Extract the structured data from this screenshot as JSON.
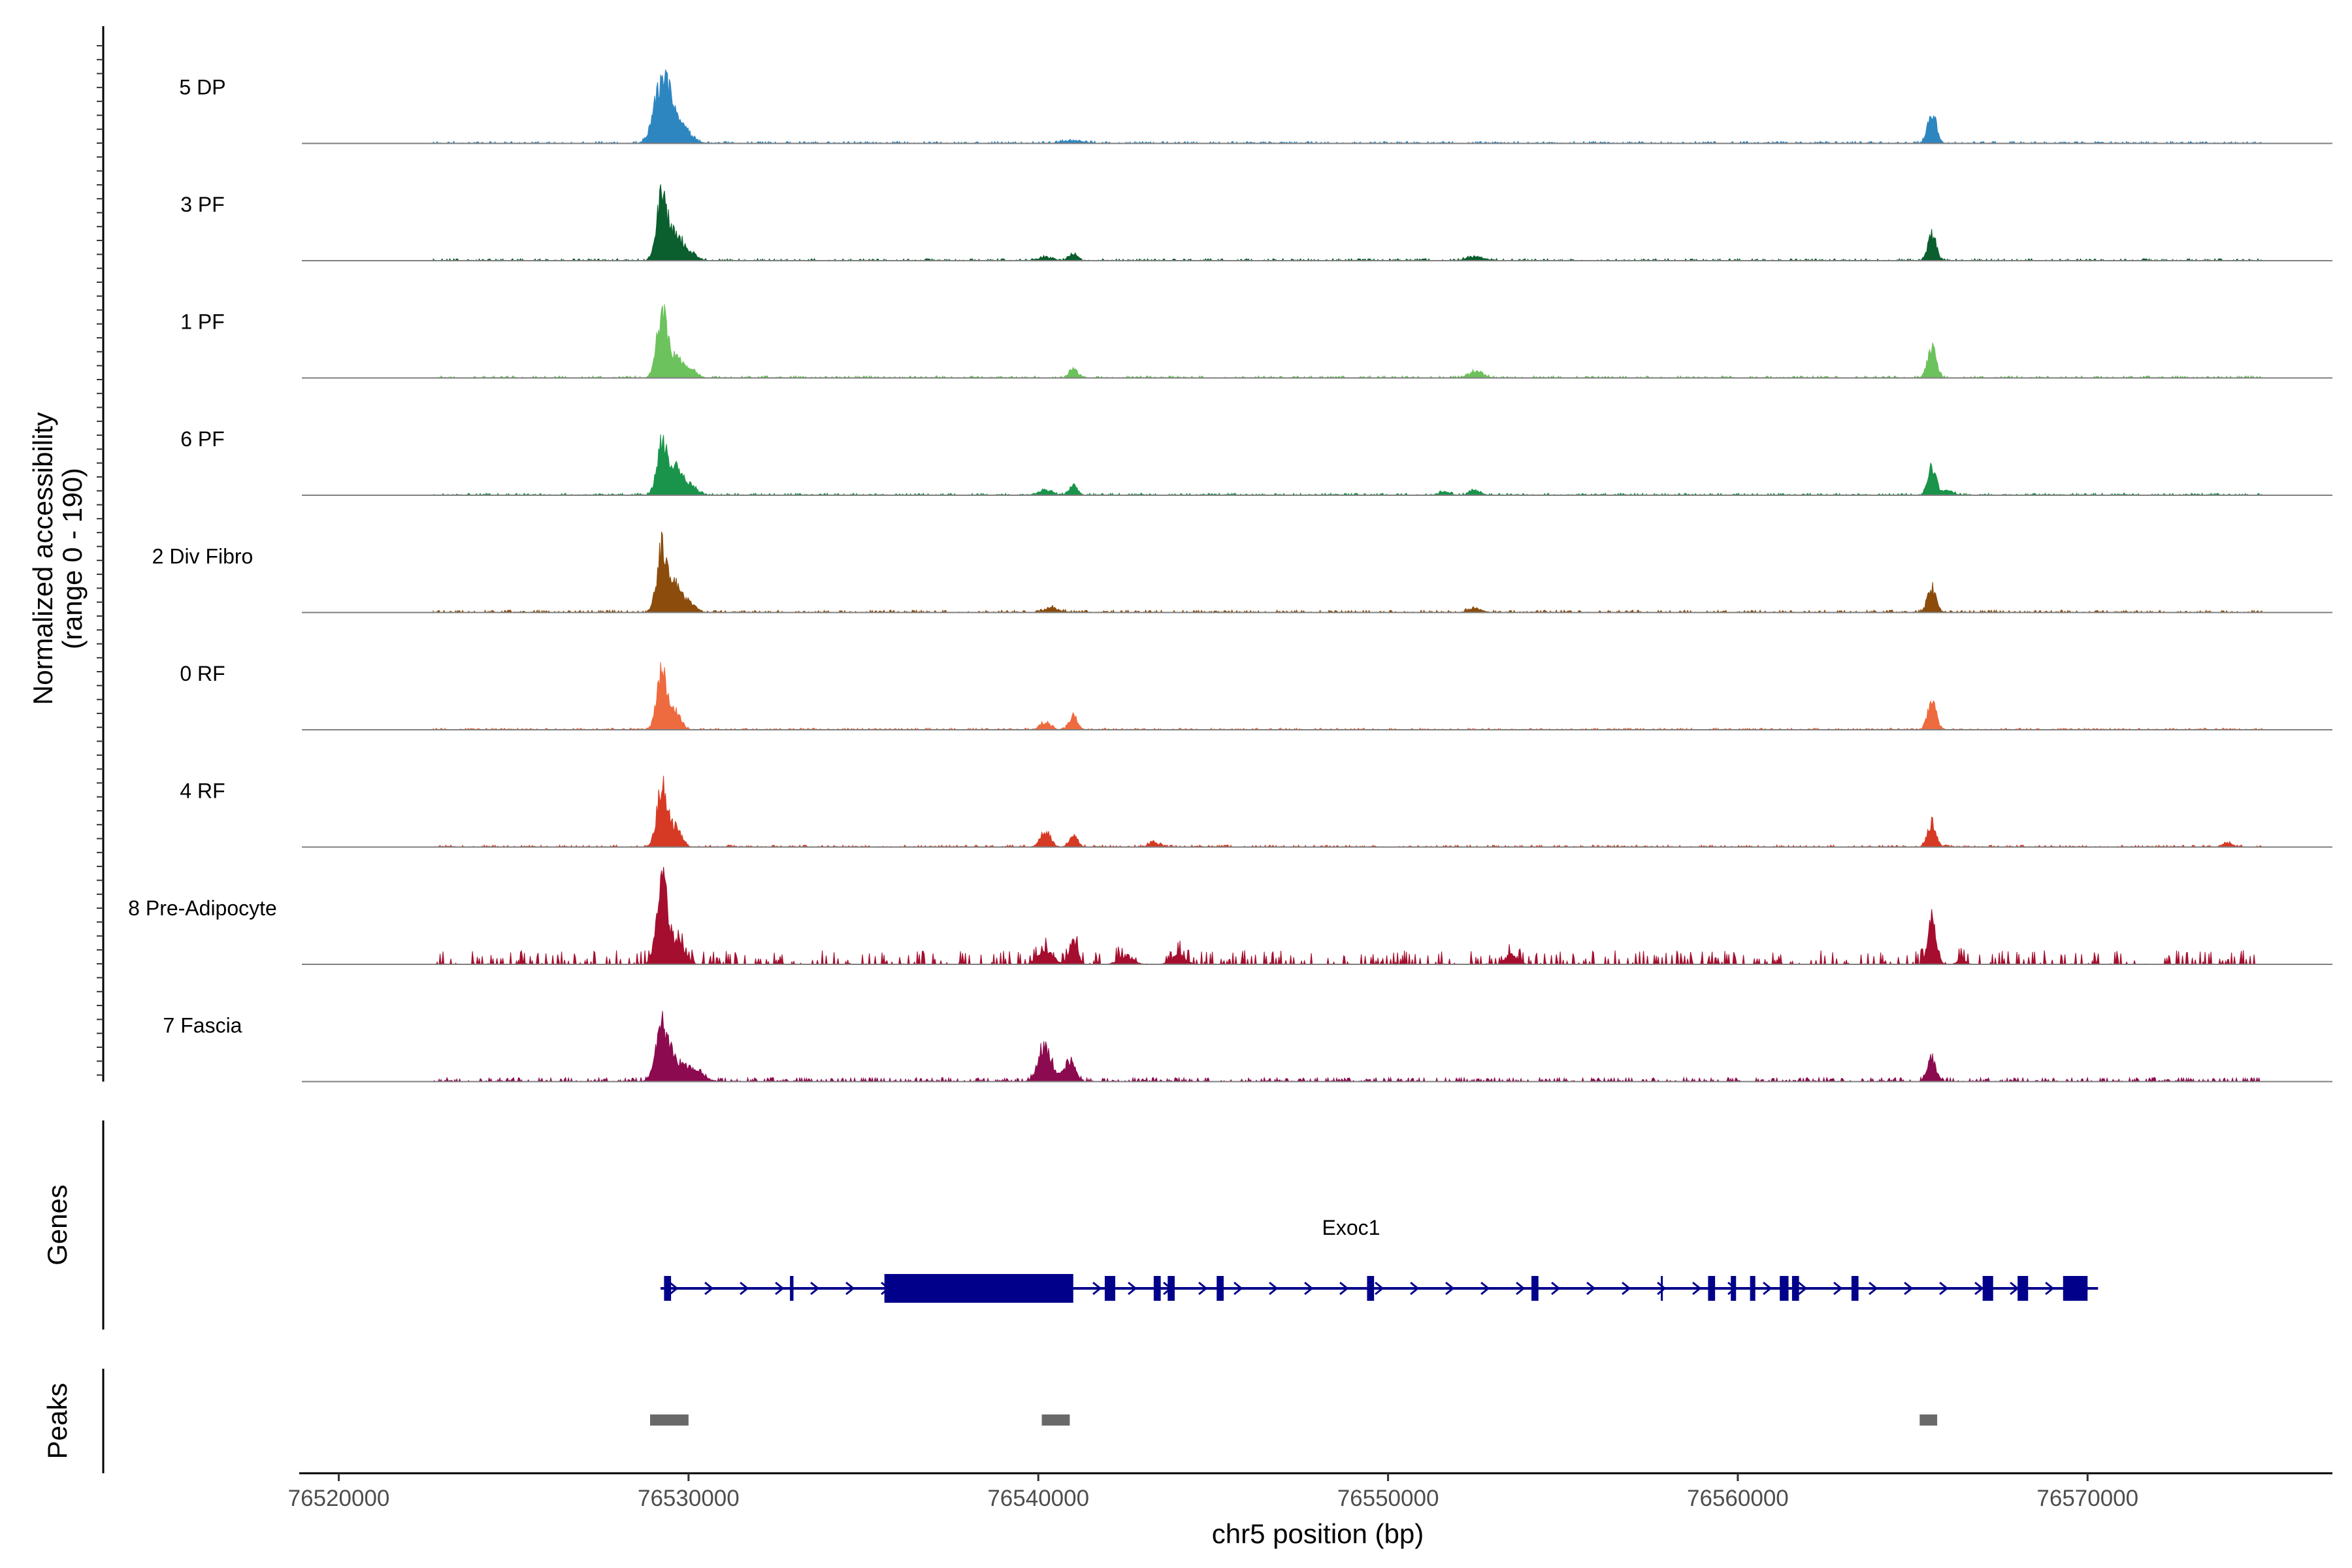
{
  "chart_data": {
    "type": "area",
    "title": "",
    "ylabel_line1": "Normalized accessibility",
    "ylabel_line2": "(range 0 - 190)",
    "y_range": [
      0,
      190
    ],
    "xlabel": "chr5 position (bp)",
    "xlim": [
      76519000,
      76577000
    ],
    "x_ticks": [
      76520000,
      76530000,
      76540000,
      76550000,
      76560000,
      76570000
    ],
    "x_tick_labels": [
      "76520000",
      "76530000",
      "76540000",
      "76550000",
      "76560000",
      "76570000"
    ],
    "tracks": [
      {
        "name": "5 DP",
        "color": "#2E86C1",
        "peaks": [
          [
            76529250,
            0.7,
            220
          ],
          [
            76529700,
            0.2,
            300
          ],
          [
            76541000,
            0.03,
            300
          ],
          [
            76565550,
            0.36,
            120
          ]
        ],
        "noise": 0.03
      },
      {
        "name": "3 PF",
        "color": "#0B5E2D",
        "peaks": [
          [
            76529250,
            0.74,
            150
          ],
          [
            76529650,
            0.28,
            150
          ],
          [
            76530000,
            0.1,
            200
          ],
          [
            76540200,
            0.04,
            200
          ],
          [
            76541000,
            0.08,
            120
          ],
          [
            76552500,
            0.04,
            250
          ],
          [
            76565550,
            0.3,
            120
          ]
        ],
        "noise": 0.03
      },
      {
        "name": "1 PF",
        "color": "#6CC25C",
        "peaks": [
          [
            76529250,
            0.76,
            150
          ],
          [
            76529650,
            0.22,
            150
          ],
          [
            76530000,
            0.1,
            200
          ],
          [
            76541000,
            0.1,
            120
          ],
          [
            76552500,
            0.07,
            200
          ],
          [
            76565550,
            0.36,
            120
          ]
        ],
        "noise": 0.03
      },
      {
        "name": "6 PF",
        "color": "#19944A",
        "peaks": [
          [
            76529250,
            0.6,
            150
          ],
          [
            76529650,
            0.28,
            150
          ],
          [
            76530000,
            0.12,
            200
          ],
          [
            76540200,
            0.05,
            200
          ],
          [
            76541000,
            0.1,
            120
          ],
          [
            76551600,
            0.04,
            150
          ],
          [
            76552500,
            0.05,
            150
          ],
          [
            76565550,
            0.3,
            120
          ],
          [
            76566000,
            0.05,
            150
          ]
        ],
        "noise": 0.03
      },
      {
        "name": "2 Div Fibro",
        "color": "#8B4C0C",
        "peaks": [
          [
            76529250,
            0.72,
            150
          ],
          [
            76529650,
            0.3,
            150
          ],
          [
            76530000,
            0.1,
            200
          ],
          [
            76540400,
            0.05,
            200
          ],
          [
            76552500,
            0.04,
            200
          ],
          [
            76565550,
            0.28,
            120
          ]
        ],
        "noise": 0.035
      },
      {
        "name": "0 RF",
        "color": "#EE6A3F",
        "peaks": [
          [
            76529250,
            0.64,
            150
          ],
          [
            76529650,
            0.18,
            150
          ],
          [
            76540200,
            0.08,
            150
          ],
          [
            76541000,
            0.16,
            120
          ],
          [
            76565550,
            0.32,
            120
          ]
        ],
        "noise": 0.025
      },
      {
        "name": "4 RF",
        "color": "#D63A24",
        "peaks": [
          [
            76529250,
            0.68,
            150
          ],
          [
            76529650,
            0.2,
            150
          ],
          [
            76540200,
            0.18,
            150
          ],
          [
            76541000,
            0.12,
            120
          ],
          [
            76543300,
            0.05,
            150
          ],
          [
            76565550,
            0.28,
            120
          ],
          [
            76574000,
            0.04,
            150
          ]
        ],
        "noise": 0.03
      },
      {
        "name": "8 Pre-Adipocyte",
        "color": "#A50E2E",
        "peaks": [
          [
            76529250,
            0.92,
            160
          ],
          [
            76529700,
            0.22,
            200
          ],
          [
            76540200,
            0.18,
            200
          ],
          [
            76541000,
            0.26,
            120
          ],
          [
            76542500,
            0.1,
            200
          ],
          [
            76544000,
            0.1,
            200
          ],
          [
            76553500,
            0.1,
            150
          ],
          [
            76565550,
            0.46,
            120
          ],
          [
            76566400,
            0.05,
            120
          ]
        ],
        "noise": 0.07,
        "sparse": true
      },
      {
        "name": "7 Fascia",
        "color": "#8C0A4F",
        "peaks": [
          [
            76529250,
            0.62,
            180
          ],
          [
            76529700,
            0.2,
            250
          ],
          [
            76530200,
            0.1,
            250
          ],
          [
            76540200,
            0.38,
            200
          ],
          [
            76540900,
            0.22,
            150
          ],
          [
            76565550,
            0.26,
            120
          ]
        ],
        "noise": 0.06
      }
    ],
    "genes_label": "Genes",
    "gene": {
      "name": "Exoc1",
      "strand": "+",
      "start": 76529200,
      "end": 76570300,
      "color": "#00008B",
      "exons": [
        [
          76529300,
          76529500
        ],
        [
          76532900,
          76533000
        ],
        [
          76535600,
          76541000
        ],
        [
          76541900,
          76542200
        ],
        [
          76543300,
          76543500
        ],
        [
          76543700,
          76543900
        ],
        [
          76545100,
          76545300
        ],
        [
          76549400,
          76549600
        ],
        [
          76554100,
          76554300
        ],
        [
          76557800,
          76557850
        ],
        [
          76559150,
          76559350
        ],
        [
          76559800,
          76559950
        ],
        [
          76560350,
          76560500
        ],
        [
          76561200,
          76561450
        ],
        [
          76561550,
          76561750
        ],
        [
          76563250,
          76563450
        ],
        [
          76567000,
          76567300
        ],
        [
          76568000,
          76568300
        ],
        [
          76569300,
          76570000
        ]
      ]
    },
    "peaks_label": "Peaks",
    "peak_regions": [
      [
        76528900,
        76530000
      ],
      [
        76540100,
        76540900
      ],
      [
        76565200,
        76565700
      ]
    ],
    "peak_color": "#696969"
  }
}
